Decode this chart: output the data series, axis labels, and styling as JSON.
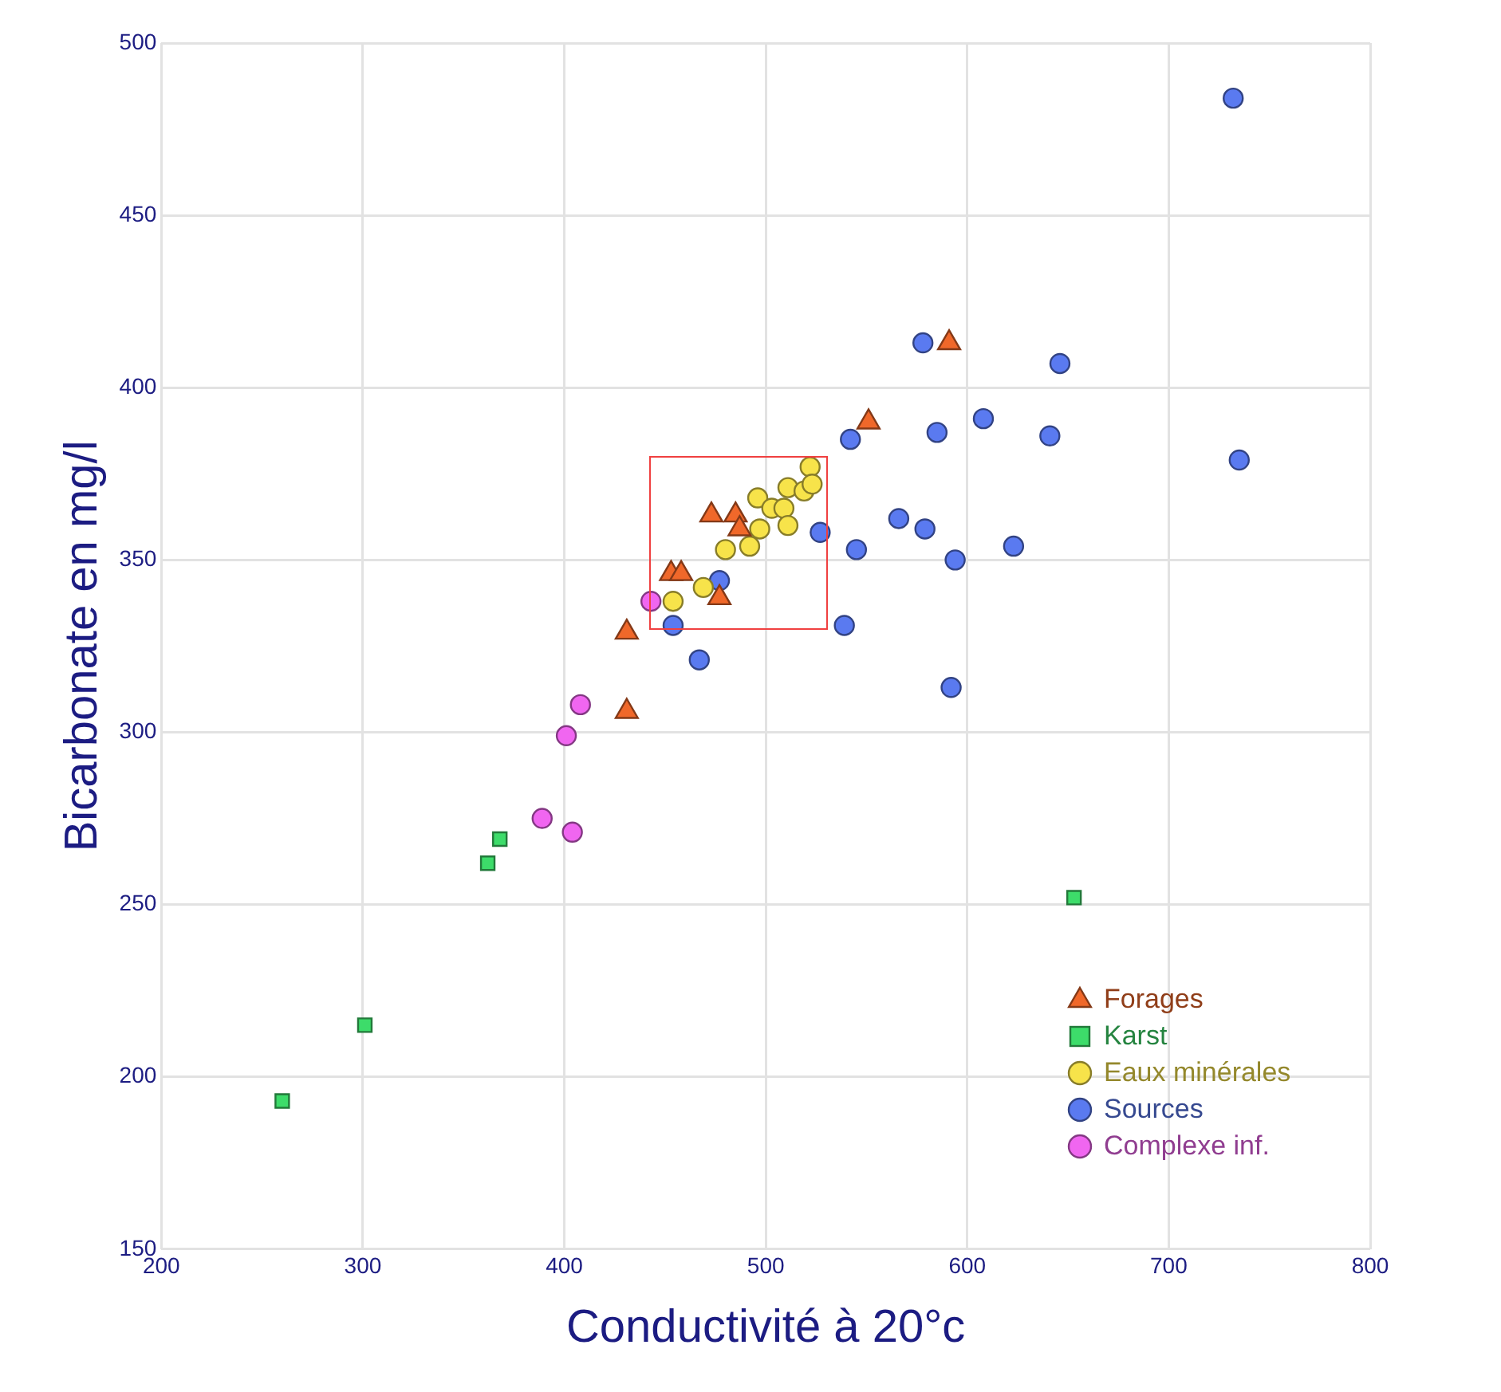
{
  "chart_data": {
    "type": "scatter",
    "xlabel": "Conductivité à 20°c",
    "ylabel": "Bicarbonate en mg/l",
    "xlim": [
      200,
      800
    ],
    "xticks": [
      200,
      300,
      400,
      500,
      600,
      700,
      800
    ],
    "ylim": [
      150,
      500
    ],
    "yticks": [
      150,
      200,
      250,
      300,
      350,
      400,
      450,
      500
    ],
    "grid": true,
    "legend": "bottom right",
    "series": [
      {
        "name": "Forages",
        "color": "#f0682a",
        "marker": "triangle",
        "x": [
          473,
          485,
          487,
          453,
          458,
          477,
          431,
          431,
          591,
          551
        ],
        "values": [
          363,
          363,
          359,
          346,
          346,
          339,
          329,
          306,
          413,
          390
        ]
      },
      {
        "name": "Karst",
        "color": "#3ddc6a",
        "marker": "square",
        "x": [
          368,
          362,
          301,
          260,
          653
        ],
        "values": [
          269,
          262,
          215,
          193,
          252
        ]
      },
      {
        "name": "Eaux minérales",
        "color": "#f7e34a",
        "marker": "circle",
        "x": [
          522,
          511,
          519,
          523,
          496,
          503,
          509,
          511,
          497,
          492,
          480,
          469,
          454
        ],
        "values": [
          377,
          371,
          370,
          372,
          368,
          365,
          365,
          360,
          359,
          354,
          353,
          342,
          338
        ]
      },
      {
        "name": "Sources",
        "color": "#5a7af0",
        "marker": "circle",
        "x": [
          542,
          527,
          566,
          545,
          477,
          454,
          539,
          467,
          578,
          646,
          585,
          608,
          641,
          735,
          579,
          594,
          623,
          592,
          732
        ],
        "values": [
          385,
          358,
          362,
          353,
          344,
          331,
          331,
          321,
          413,
          407,
          387,
          391,
          386,
          379,
          359,
          350,
          354,
          313,
          484
        ]
      },
      {
        "name": "Complexe inf.",
        "color": "#f066f0",
        "marker": "circle",
        "x": [
          443,
          408,
          401,
          389,
          404
        ],
        "values": [
          338,
          308,
          299,
          275,
          271
        ]
      }
    ]
  }
}
